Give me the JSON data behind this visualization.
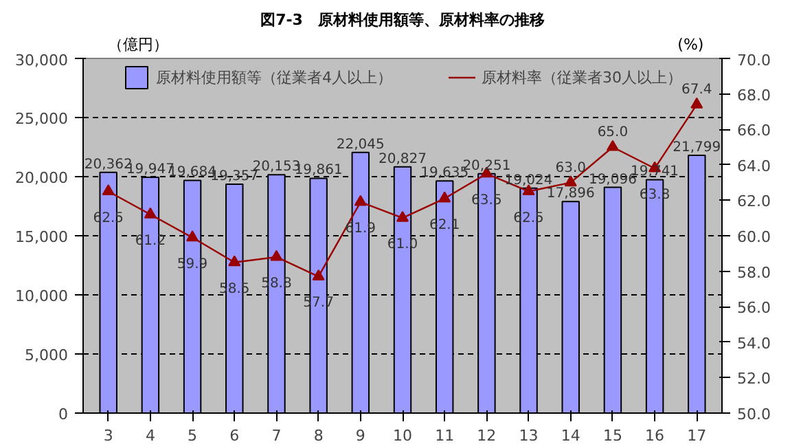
{
  "chart_data": {
    "type": "bar",
    "title": "図7-3　原材料使用額等、原材料率の推移",
    "ylabel": "（億円）",
    "y2label": "(%)",
    "categories": [
      "3",
      "4",
      "5",
      "6",
      "7",
      "8",
      "9",
      "10",
      "11",
      "12",
      "13",
      "14",
      "15",
      "16",
      "17"
    ],
    "series": [
      {
        "name": "原材料使用額等（従業者4人以上）",
        "color": "#9999ff",
        "values": [
          20362,
          19947,
          19684,
          19357,
          20153,
          19861,
          22045,
          20827,
          19635,
          20251,
          19024,
          17896,
          19096,
          19741,
          21799
        ],
        "value_labels": [
          "20,362",
          "19,947",
          "19,684",
          "19,357",
          "20,153",
          "19,861",
          "22,045",
          "20,827",
          "19,635",
          "20,251",
          "19,024",
          "17,896",
          "19,096",
          "19,741",
          "21,799"
        ]
      },
      {
        "name": "原材料率（従業者30人以上）",
        "type": "line",
        "axis": "y2",
        "color": "#990000",
        "marker": "triangle",
        "values": [
          62.5,
          61.2,
          59.9,
          58.5,
          58.8,
          57.7,
          61.9,
          61.0,
          62.1,
          63.5,
          62.5,
          63.0,
          65.0,
          63.8,
          67.4
        ],
        "value_labels": [
          "62.5",
          "61.2",
          "59.9",
          "58.5",
          "58.8",
          "57.7",
          "61.9",
          "61.0",
          "62.1",
          "63.5",
          "62.5",
          "63.0",
          "65.0",
          "63.8",
          "67.4"
        ]
      }
    ],
    "ylim": [
      0,
      30000
    ],
    "yticks": [
      {
        "value": 0,
        "label": "0"
      },
      {
        "value": 5000,
        "label": "5,000"
      },
      {
        "value": 10000,
        "label": "10,000"
      },
      {
        "value": 15000,
        "label": "15,000"
      },
      {
        "value": 20000,
        "label": "20,000"
      },
      {
        "value": 25000,
        "label": "25,000"
      },
      {
        "value": 30000,
        "label": "30,000"
      }
    ],
    "y2lim": [
      50,
      70
    ],
    "y2ticks": [
      {
        "value": 50,
        "label": "50.0"
      },
      {
        "value": 52,
        "label": "52.0"
      },
      {
        "value": 54,
        "label": "54.0"
      },
      {
        "value": 56,
        "label": "56.0"
      },
      {
        "value": 58,
        "label": "58.0"
      },
      {
        "value": 60,
        "label": "60.0"
      },
      {
        "value": 62,
        "label": "62.0"
      },
      {
        "value": 64,
        "label": "64.0"
      },
      {
        "value": 66,
        "label": "66.0"
      },
      {
        "value": 68,
        "label": "68.0"
      },
      {
        "value": 70,
        "label": "70.0"
      }
    ],
    "grid": "y",
    "legend": "top"
  }
}
